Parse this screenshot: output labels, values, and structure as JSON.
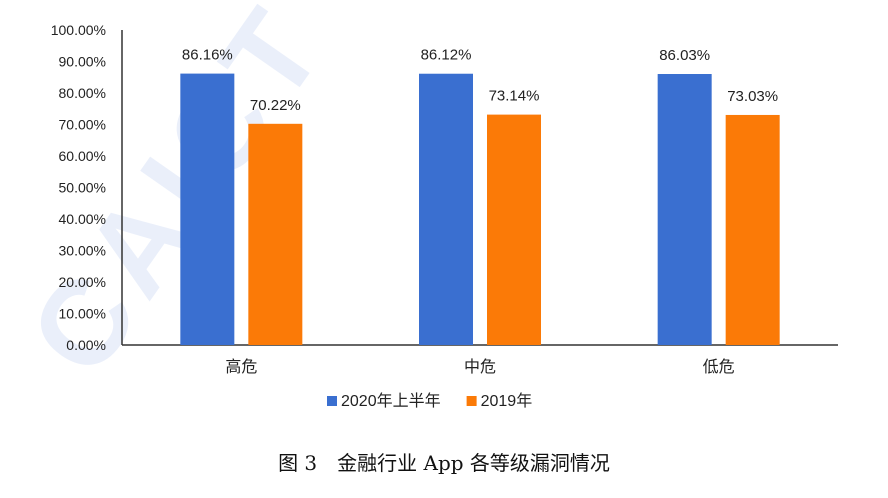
{
  "caption": "图 3　金融行业 App 各等级漏洞情况",
  "chart_data": {
    "type": "bar",
    "title": "",
    "xlabel": "",
    "ylabel": "",
    "categories": [
      "高危",
      "中危",
      "低危"
    ],
    "series": [
      {
        "name": "2020年上半年",
        "values": [
          86.16,
          86.12,
          86.03
        ],
        "labels": [
          "86.16%",
          "86.12%",
          "86.03%"
        ],
        "color": "#3a6fd0"
      },
      {
        "name": "2019年",
        "values": [
          70.22,
          73.14,
          73.03
        ],
        "labels": [
          "70.22%",
          "73.14%",
          "73.03%"
        ],
        "color": "#fb7a07"
      }
    ],
    "ylim": [
      0,
      100
    ],
    "yticks": [
      0,
      10,
      20,
      30,
      40,
      50,
      60,
      70,
      80,
      90,
      100
    ],
    "ytick_labels": [
      "0.00%",
      "10.00%",
      "20.00%",
      "30.00%",
      "40.00%",
      "50.00%",
      "60.00%",
      "70.00%",
      "80.00%",
      "90.00%",
      "100.00%"
    ],
    "grid": false,
    "legend_position": "bottom"
  }
}
